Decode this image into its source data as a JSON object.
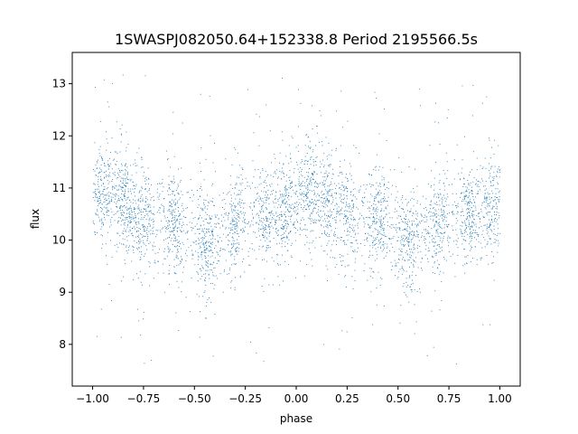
{
  "chart_data": {
    "type": "scatter",
    "title": "1SWASPJ082050.64+152338.8 Period 2195566.5s",
    "xlabel": "phase",
    "ylabel": "flux",
    "xlim": [
      -1.1,
      1.1
    ],
    "ylim": [
      7.2,
      13.6
    ],
    "xticks": [
      -1.0,
      -0.75,
      -0.5,
      -0.25,
      0.0,
      0.25,
      0.5,
      0.75,
      1.0
    ],
    "xtick_labels": [
      "−1.00",
      "−0.75",
      "−0.50",
      "−0.25",
      "0.00",
      "0.25",
      "0.50",
      "0.75",
      "1.00"
    ],
    "yticks": [
      8,
      9,
      10,
      11,
      12,
      13
    ],
    "ytick_labels": [
      "8",
      "9",
      "10",
      "11",
      "12",
      "13"
    ],
    "grid": false,
    "marker_color": "#1f77b4",
    "description_points": {
      "x_range": [
        -1.0,
        1.0
      ],
      "typical_y_range": [
        9.5,
        11.8
      ],
      "outlier_y_range": [
        7.5,
        13.3
      ],
      "dense_bands_at_phase": [
        -0.95,
        -0.85,
        -0.75,
        -0.6,
        -0.45,
        -0.3,
        -0.15,
        -0.05,
        0.05,
        0.15,
        0.25,
        0.4,
        0.55,
        0.7,
        0.85,
        0.95
      ]
    }
  }
}
